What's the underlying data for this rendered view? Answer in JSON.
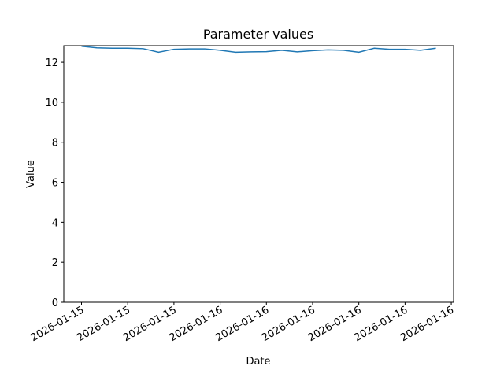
{
  "chart_data": {
    "type": "line",
    "title": "Parameter values",
    "xlabel": "Date",
    "ylabel": "Value",
    "values": [
      12.8,
      12.72,
      12.7,
      12.7,
      12.68,
      12.5,
      12.65,
      12.67,
      12.67,
      12.6,
      12.5,
      12.52,
      12.53,
      12.6,
      12.52,
      12.58,
      12.62,
      12.6,
      12.5,
      12.7,
      12.65,
      12.65,
      12.6,
      12.7
    ],
    "color": "#1f77b4",
    "xlim": [
      -1.15,
      24.15
    ],
    "xticks": [
      {
        "value": 0,
        "label": "2026-01-15"
      },
      {
        "value": 3,
        "label": "2026-01-15"
      },
      {
        "value": 6,
        "label": "2026-01-15"
      },
      {
        "value": 9,
        "label": "2026-01-16"
      },
      {
        "value": 12,
        "label": "2026-01-16"
      },
      {
        "value": 15,
        "label": "2026-01-16"
      },
      {
        "value": 18,
        "label": "2026-01-16"
      },
      {
        "value": 21,
        "label": "2026-01-16"
      },
      {
        "value": 24,
        "label": "2026-01-16"
      }
    ],
    "ylim": [
      0,
      12.83
    ],
    "yticks": [
      0,
      2,
      4,
      6,
      8,
      10,
      12
    ]
  }
}
